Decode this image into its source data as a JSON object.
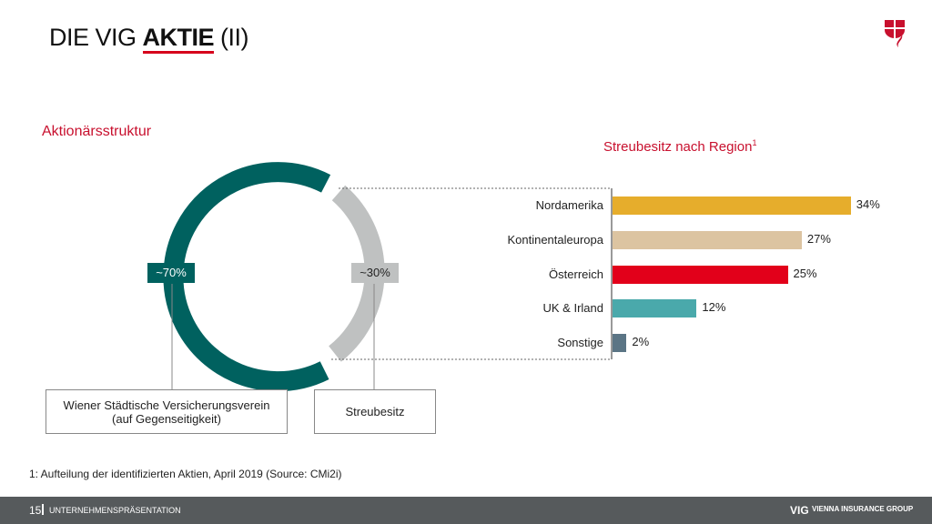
{
  "header": {
    "title_prefix": "DIE VIG ",
    "title_bold": "AKTIE",
    "title_suffix": " (II)",
    "logo_icon": "vig-shield-logo"
  },
  "left": {
    "heading": "Aktionärsstruktur",
    "segments": [
      {
        "label": "~70%",
        "name": "Wiener Städtische Versicherungsverein",
        "name2": "(auf Gegenseitigkeit)",
        "value": 70,
        "color": "#00615f"
      },
      {
        "label": "~30%",
        "name": "Streubesitz",
        "value": 30,
        "color": "#bfc1c1"
      }
    ]
  },
  "chart_data": {
    "type": "bar",
    "title": "Streubesitz nach Region",
    "title_sup": "1",
    "categories": [
      "Nordamerika",
      "Kontinentaleuropa",
      "Österreich",
      "UK & Irland",
      "Sonstige"
    ],
    "values": [
      34,
      27,
      25,
      12,
      2
    ],
    "labels": [
      "34%",
      "27%",
      "25%",
      "12%",
      "2%"
    ],
    "colors": [
      "#e6ad2c",
      "#dcc4a1",
      "#e2001a",
      "#4aa9ab",
      "#5b7585"
    ]
  },
  "footnote": "1: Aufteilung der identifizierten Aktien, April 2019 (Source: CMi2i)",
  "footer": {
    "page": "15",
    "section": "UNTERNEHMENSPRÄSENTATION",
    "brand": "VIG",
    "brand_sub": "VIENNA INSURANCE GROUP"
  }
}
